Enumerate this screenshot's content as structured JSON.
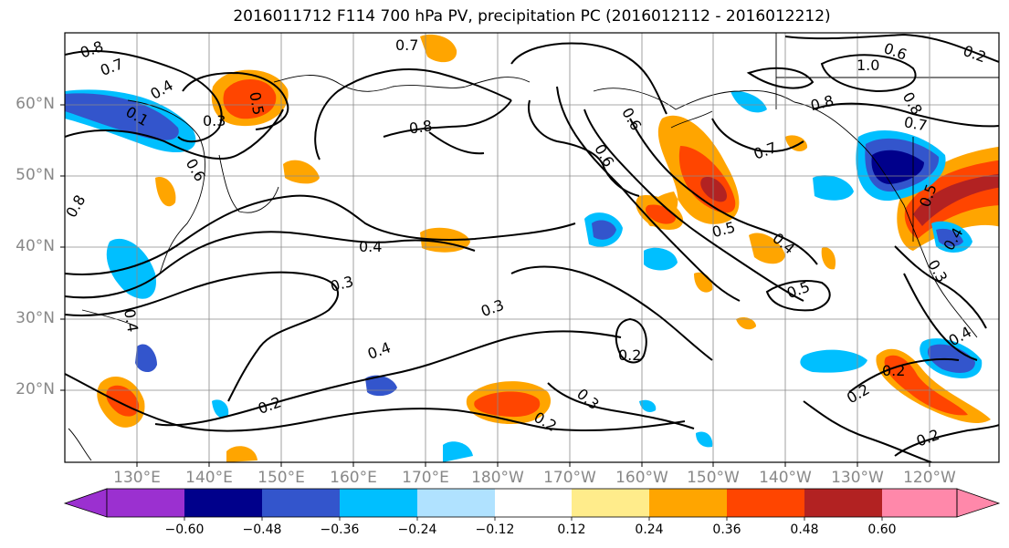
{
  "title": "2016011712 F114 700 hPa PV, precipitation PC (2016012112 - 2016012212)",
  "lat_labels": [
    "60°N",
    "50°N",
    "40°N",
    "30°N",
    "20°N"
  ],
  "lon_labels": [
    "130°E",
    "140°E",
    "150°E",
    "160°E",
    "170°E",
    "180°W",
    "170°W",
    "160°W",
    "150°W",
    "140°W",
    "130°W",
    "120°W"
  ],
  "contour_labels": [
    "0.8",
    "0.7",
    "0.4",
    "0.3",
    "0.5",
    "0.1",
    "0.6",
    "0.8",
    "0.7",
    "0.8",
    "0.6",
    "0.6",
    "0.7",
    "0.5",
    "0.4",
    "0.5",
    "0.8",
    "0.4",
    "0.3",
    "0.3",
    "0.4",
    "0.2",
    "0.2",
    "0.3",
    "0.2",
    "0.2",
    "0.6",
    "1.0",
    "0.8",
    "0.7",
    "0.2",
    "0.2",
    "0.4",
    "0.5",
    "0.4",
    "0.2",
    "0.4",
    "0.3"
  ],
  "colorbar": {
    "ticks": [
      "−0.60",
      "−0.48",
      "−0.36",
      "−0.24",
      "−0.12",
      "0.12",
      "0.24",
      "0.36",
      "0.48",
      "0.60"
    ],
    "colors": [
      "#9b30d0",
      "#00008b",
      "#3355cc",
      "#00bfff",
      "#b0e2ff",
      "#ffffff",
      "#ffec8b",
      "#ffa500",
      "#ff4500",
      "#b22222",
      "#ff88aa"
    ]
  },
  "colors": {
    "purple": "#9b30d0",
    "navy": "#00008b",
    "blue": "#3355cc",
    "sky": "#00bfff",
    "lightblue": "#b0e2ff",
    "yellow": "#ffec8b",
    "orange": "#ffa500",
    "red": "#ff4500",
    "darkred": "#b22222",
    "pink": "#ff88aa"
  }
}
